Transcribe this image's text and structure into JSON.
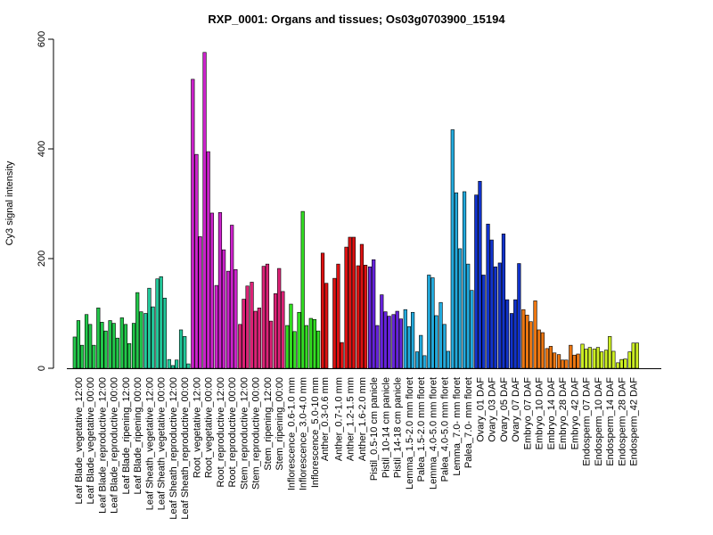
{
  "chart_data": {
    "type": "bar",
    "title": "RXP_0001: Organs and tissues; Os03g0703900_15194",
    "xlabel": "",
    "ylabel": "Cy3 signal intensity",
    "ylim": [
      0,
      600
    ],
    "yticks": [
      0,
      200,
      400,
      600
    ],
    "grid": false,
    "legend": "none",
    "groups": [
      {
        "label": "Leaf Blade_vegetative_12:00",
        "color": "#22c84a",
        "values": [
          57,
          87,
          42
        ]
      },
      {
        "label": "Leaf Blade_vegetative_00:00",
        "color": "#22c84a",
        "values": [
          98,
          80,
          42
        ]
      },
      {
        "label": "Leaf Blade_reproductive_12:00",
        "color": "#22c84a",
        "values": [
          110,
          84,
          68
        ]
      },
      {
        "label": "Leaf Blade_reproductive_00:00",
        "color": "#22c84a",
        "values": [
          87,
          82,
          55
        ]
      },
      {
        "label": "Leaf Blade_ripening_12:00",
        "color": "#22c84a",
        "values": [
          92,
          80,
          45
        ]
      },
      {
        "label": "Leaf Blade_ripening_00:00",
        "color": "#22c84a",
        "values": [
          82,
          138,
          103
        ]
      },
      {
        "label": "Leaf Sheath_vegetative_12:00",
        "color": "#22c89a",
        "values": [
          100,
          146,
          112
        ]
      },
      {
        "label": "Leaf Sheath_vegetative_00:00",
        "color": "#22c89a",
        "values": [
          163,
          167,
          128
        ]
      },
      {
        "label": "Leaf Sheath_reproductive_12:00",
        "color": "#22c89a",
        "values": [
          16,
          5,
          15
        ]
      },
      {
        "label": "Leaf Sheath_reproductive_00:00",
        "color": "#22c89a",
        "values": [
          70,
          58,
          8
        ]
      },
      {
        "label": "Root_vegetative_12:00",
        "color": "#cc22cc",
        "values": [
          527,
          390,
          240
        ]
      },
      {
        "label": "Root_vegetative_00:00",
        "color": "#cc22cc",
        "values": [
          576,
          395,
          283
        ]
      },
      {
        "label": "Root_reproductive_12:00",
        "color": "#cc22cc",
        "values": [
          151,
          284,
          216
        ]
      },
      {
        "label": "Root_reproductive_00:00",
        "color": "#cc22cc",
        "values": [
          177,
          261,
          180
        ]
      },
      {
        "label": "Stem_reproductive_12:00",
        "color": "#dd2277",
        "values": [
          80,
          126,
          150
        ]
      },
      {
        "label": "Stem_reproductive_00:00",
        "color": "#dd2277",
        "values": [
          157,
          104,
          110
        ]
      },
      {
        "label": "Stem_ripening_12:00",
        "color": "#dd2277",
        "values": [
          186,
          190,
          86
        ]
      },
      {
        "label": "Stem_ripening_00:00",
        "color": "#dd2277",
        "values": [
          136,
          182,
          140
        ]
      },
      {
        "label": "Inflorescence_0.6-1.0 mm",
        "color": "#33dd22",
        "values": [
          78,
          117,
          67
        ]
      },
      {
        "label": "Inflorescence_3.0-4.0 mm",
        "color": "#33dd22",
        "values": [
          102,
          286,
          78
        ]
      },
      {
        "label": "Inflorescence_5.0-10 mm",
        "color": "#33dd22",
        "values": [
          91,
          89,
          68
        ]
      },
      {
        "label": "Anther_0.3-0.6 mm",
        "color": "#dd1111",
        "values": [
          210,
          155
        ]
      },
      {
        "label": "Anther_0.7-1.0 mm",
        "color": "#dd1111",
        "values": [
          164,
          190,
          47
        ]
      },
      {
        "label": "Anther_1.2-1.5 mm",
        "color": "#dd1111",
        "values": [
          221,
          239,
          239
        ]
      },
      {
        "label": "Anther_1.6-2.0 mm",
        "color": "#dd1111",
        "values": [
          187,
          226,
          188
        ]
      },
      {
        "label": "Pistil_0.5-10 cm panicle",
        "color": "#6622dd",
        "values": [
          185,
          198,
          78
        ]
      },
      {
        "label": "Pistil_10-14 cm panicle",
        "color": "#6622dd",
        "values": [
          134,
          103,
          95
        ]
      },
      {
        "label": "Pistil_14-18 cm panicle",
        "color": "#6622dd",
        "values": [
          98,
          104,
          90
        ]
      },
      {
        "label": "Lemma_1.5-2.0 mm floret",
        "color": "#22aadd",
        "values": [
          107,
          76,
          102
        ]
      },
      {
        "label": "Palea_1.5-2.0 mm floret",
        "color": "#22aadd",
        "values": [
          30,
          60,
          23
        ]
      },
      {
        "label": "Lemma_4.0-5.0 mm floret",
        "color": "#22aadd",
        "values": [
          170,
          165,
          96
        ]
      },
      {
        "label": "Palea_4.0-5.0 mm floret",
        "color": "#22aadd",
        "values": [
          120,
          80,
          31
        ]
      },
      {
        "label": "Lemma_7.0- mm floret",
        "color": "#22aadd",
        "values": [
          435,
          320,
          218
        ]
      },
      {
        "label": "Palea_7.0- mm floret",
        "color": "#22aadd",
        "values": [
          322,
          190,
          142
        ]
      },
      {
        "label": "Ovary_01 DAF",
        "color": "#1133cc",
        "values": [
          316,
          341,
          170
        ]
      },
      {
        "label": "Ovary_03 DAF",
        "color": "#1133cc",
        "values": [
          263,
          234,
          185
        ]
      },
      {
        "label": "Ovary_05 DAF",
        "color": "#1133cc",
        "values": [
          192,
          245,
          125
        ]
      },
      {
        "label": "Ovary_07 DAF",
        "color": "#1133cc",
        "values": [
          100,
          125,
          191
        ]
      },
      {
        "label": "Embryo_07 DAF",
        "color": "#ee7711",
        "values": [
          107,
          97,
          85
        ]
      },
      {
        "label": "Embryo_10 DAF",
        "color": "#ee7711",
        "values": [
          123,
          70,
          65
        ]
      },
      {
        "label": "Embryo_14 DAF",
        "color": "#ee7711",
        "values": [
          36,
          40,
          28
        ]
      },
      {
        "label": "Embryo_28 DAF",
        "color": "#ee7711",
        "values": [
          25,
          15,
          15
        ]
      },
      {
        "label": "Embryo_42 DAF",
        "color": "#ee7711",
        "values": [
          42,
          24,
          26
        ]
      },
      {
        "label": "Endosperm_07 DAF",
        "color": "#ccee22",
        "values": [
          44,
          35,
          38
        ]
      },
      {
        "label": "Endosperm_10 DAF",
        "color": "#ccee22",
        "values": [
          35,
          38,
          30
        ]
      },
      {
        "label": "Endosperm_14 DAF",
        "color": "#ccee22",
        "values": [
          33,
          58,
          31
        ]
      },
      {
        "label": "Endosperm_28 DAF",
        "color": "#ccee22",
        "values": [
          10,
          16,
          17
        ]
      },
      {
        "label": "Endosperm_42 DAF",
        "color": "#ccee22",
        "values": [
          30,
          46,
          46
        ]
      }
    ]
  }
}
